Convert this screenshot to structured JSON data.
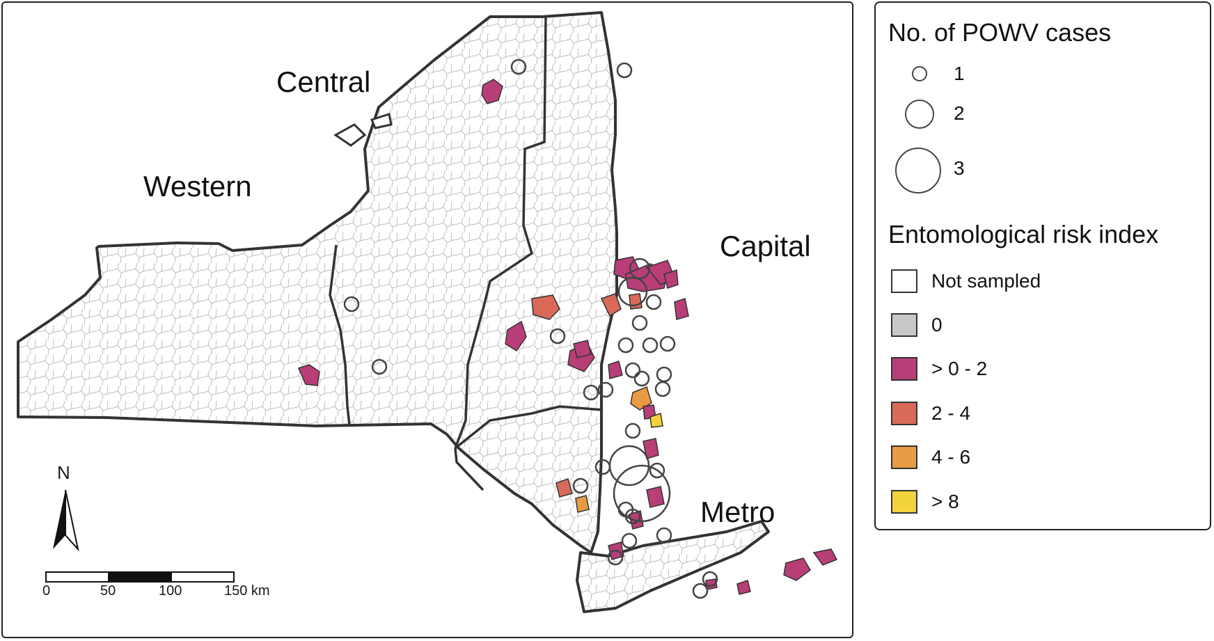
{
  "map": {
    "regions": {
      "central": "Central",
      "western": "Western",
      "capital": "Capital",
      "metro": "Metro"
    },
    "north_label": "N",
    "scale_bar": {
      "ticks": [
        "0",
        "50",
        "100",
        "150 km"
      ]
    },
    "boundary_color": "#333333",
    "zone_line_color": "#b9b9b9",
    "risk_colors": {
      "not_sampled": "#ffffff",
      "zero": "#c8c8c8",
      "gt0_2": "#b83e78",
      "2_4": "#d96a5a",
      "4_6": "#e89a45",
      "gt8": "#f2d23d"
    }
  },
  "legend": {
    "cases_title": "No. of POWV cases",
    "cases": [
      {
        "label": "1",
        "count": 1
      },
      {
        "label": "2",
        "count": 2
      },
      {
        "label": "3",
        "count": 3
      }
    ],
    "risk_title": "Entomological risk index",
    "risk_classes": [
      {
        "label": "Not sampled",
        "color": "#ffffff"
      },
      {
        "label": "0",
        "color": "#c8c8c8"
      },
      {
        "label": "> 0 - 2",
        "color": "#b83e78"
      },
      {
        "label": "2 - 4",
        "color": "#d96a5a"
      },
      {
        "label": "4 - 6",
        "color": "#e89a45"
      },
      {
        "label": "> 8",
        "color": "#f2d23d"
      }
    ]
  }
}
